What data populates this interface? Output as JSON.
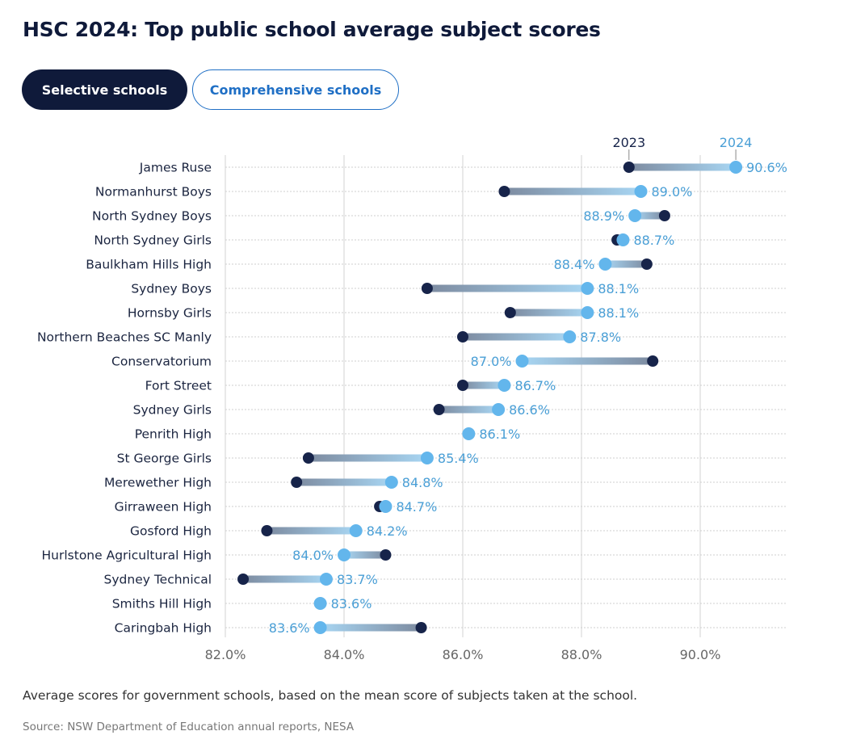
{
  "title": "HSC 2024: Top public school average subject scores",
  "tabs": [
    {
      "label": "Selective schools",
      "selected": true
    },
    {
      "label": "Comprehensive schools",
      "selected": false
    }
  ],
  "caption": "Average scores for government schools, based on the mean score of subjects taken at the school.",
  "source": "Source: NSW Department of Education annual reports, NESA",
  "colors": {
    "y2023": "#17244a",
    "y2024": "#63b6ec",
    "label": "#4a9fd6"
  },
  "chart_data": {
    "type": "dumbbell",
    "title": "HSC 2024: Top public school average subject scores",
    "xlabel": "",
    "ylabel": "",
    "xlim": [
      82,
      91.5
    ],
    "xticks": [
      82,
      84,
      86,
      88,
      90
    ],
    "xtick_labels": [
      "82.0%",
      "84.0%",
      "86.0%",
      "88.0%",
      "90.0%"
    ],
    "grid": true,
    "legend": {
      "2023": "2023",
      "2024": "2024",
      "placement": "top-right"
    },
    "categories": [
      "James Ruse",
      "Normanhurst Boys",
      "North Sydney Boys",
      "North Sydney Girls",
      "Baulkham Hills High",
      "Sydney Boys",
      "Hornsby Girls",
      "Northern Beaches SC Manly",
      "Conservatorium",
      "Fort Street",
      "Sydney Girls",
      "Penrith High",
      "St George Girls",
      "Merewether High",
      "Girraween High",
      "Gosford High",
      "Hurlstone Agricultural High",
      "Sydney Technical",
      "Smiths Hill High",
      "Caringbah High"
    ],
    "series": [
      {
        "name": "2023",
        "values": [
          88.8,
          86.7,
          89.4,
          88.6,
          89.1,
          85.4,
          86.8,
          86.0,
          89.2,
          86.0,
          85.6,
          86.1,
          83.4,
          83.2,
          84.6,
          82.7,
          84.7,
          82.3,
          83.6,
          85.3
        ]
      },
      {
        "name": "2024",
        "values": [
          90.6,
          89.0,
          88.9,
          88.7,
          88.4,
          88.1,
          88.1,
          87.8,
          87.0,
          86.7,
          86.6,
          86.1,
          85.4,
          84.8,
          84.7,
          84.2,
          84.0,
          83.7,
          83.6,
          83.6
        ]
      }
    ],
    "data_labels": [
      "90.6%",
      "89.0%",
      "88.9%",
      "88.7%",
      "88.4%",
      "88.1%",
      "88.1%",
      "87.8%",
      "87.0%",
      "86.7%",
      "86.6%",
      "86.1%",
      "85.4%",
      "84.8%",
      "84.7%",
      "84.2%",
      "84.0%",
      "83.7%",
      "83.6%",
      "83.6%"
    ]
  }
}
